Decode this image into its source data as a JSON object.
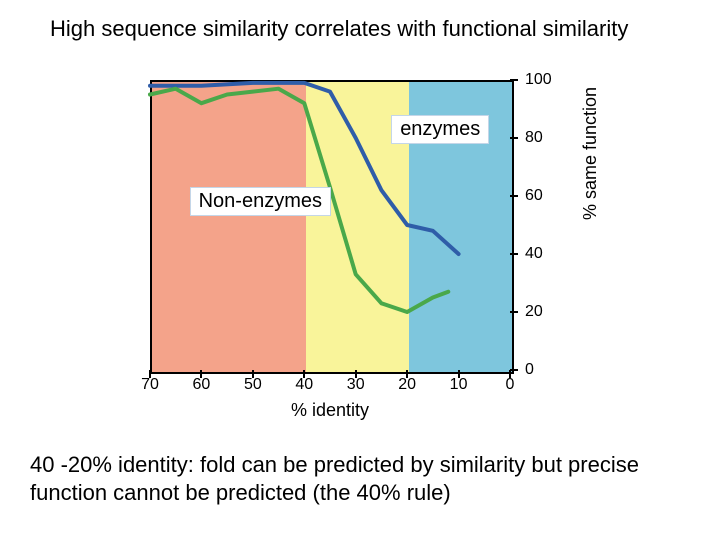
{
  "title": "High sequence similarity correlates with functional similarity",
  "caption": "40 -20% identity: fold can be predicted by similarity but precise function cannot be predicted (the 40% rule)",
  "chart": {
    "type": "line",
    "background_color": "#ffffff",
    "plot_border_color": "#000000",
    "x_axis": {
      "label": "% identity",
      "min": 0,
      "max": 70,
      "ticks": [
        70,
        60,
        50,
        40,
        30,
        20,
        10,
        0
      ],
      "reversed": true,
      "label_fontsize": 18,
      "tick_fontsize": 16
    },
    "y_axis": {
      "label": "% same function",
      "min": 0,
      "max": 100,
      "ticks": [
        0,
        20,
        40,
        60,
        80,
        100
      ],
      "side": "right",
      "label_fontsize": 18,
      "tick_fontsize": 16
    },
    "zones": [
      {
        "x_from": 70,
        "x_to": 40,
        "color": "#f4a38a"
      },
      {
        "x_from": 40,
        "x_to": 20,
        "color": "#f9f49a"
      },
      {
        "x_from": 20,
        "x_to": 0,
        "color": "#7ec6dd"
      }
    ],
    "series": [
      {
        "name": "enzymes",
        "label": "enzymes",
        "label_pos": {
          "x_pct": 67,
          "y_pct": 12
        },
        "color": "#2f5da8",
        "line_width": 4,
        "points": [
          {
            "x": 70,
            "y": 98
          },
          {
            "x": 60,
            "y": 98
          },
          {
            "x": 50,
            "y": 99
          },
          {
            "x": 40,
            "y": 99
          },
          {
            "x": 35,
            "y": 96
          },
          {
            "x": 30,
            "y": 80
          },
          {
            "x": 25,
            "y": 62
          },
          {
            "x": 20,
            "y": 50
          },
          {
            "x": 15,
            "y": 48
          },
          {
            "x": 10,
            "y": 40
          }
        ]
      },
      {
        "name": "non-enzymes",
        "label": "Non-enzymes",
        "label_pos": {
          "x_pct": 11,
          "y_pct": 37
        },
        "color": "#4aa84a",
        "line_width": 4,
        "points": [
          {
            "x": 70,
            "y": 95
          },
          {
            "x": 65,
            "y": 97
          },
          {
            "x": 60,
            "y": 92
          },
          {
            "x": 55,
            "y": 95
          },
          {
            "x": 50,
            "y": 96
          },
          {
            "x": 45,
            "y": 97
          },
          {
            "x": 40,
            "y": 92
          },
          {
            "x": 35,
            "y": 63
          },
          {
            "x": 30,
            "y": 33
          },
          {
            "x": 25,
            "y": 23
          },
          {
            "x": 20,
            "y": 20
          },
          {
            "x": 15,
            "y": 25
          },
          {
            "x": 12,
            "y": 27
          }
        ]
      }
    ]
  }
}
